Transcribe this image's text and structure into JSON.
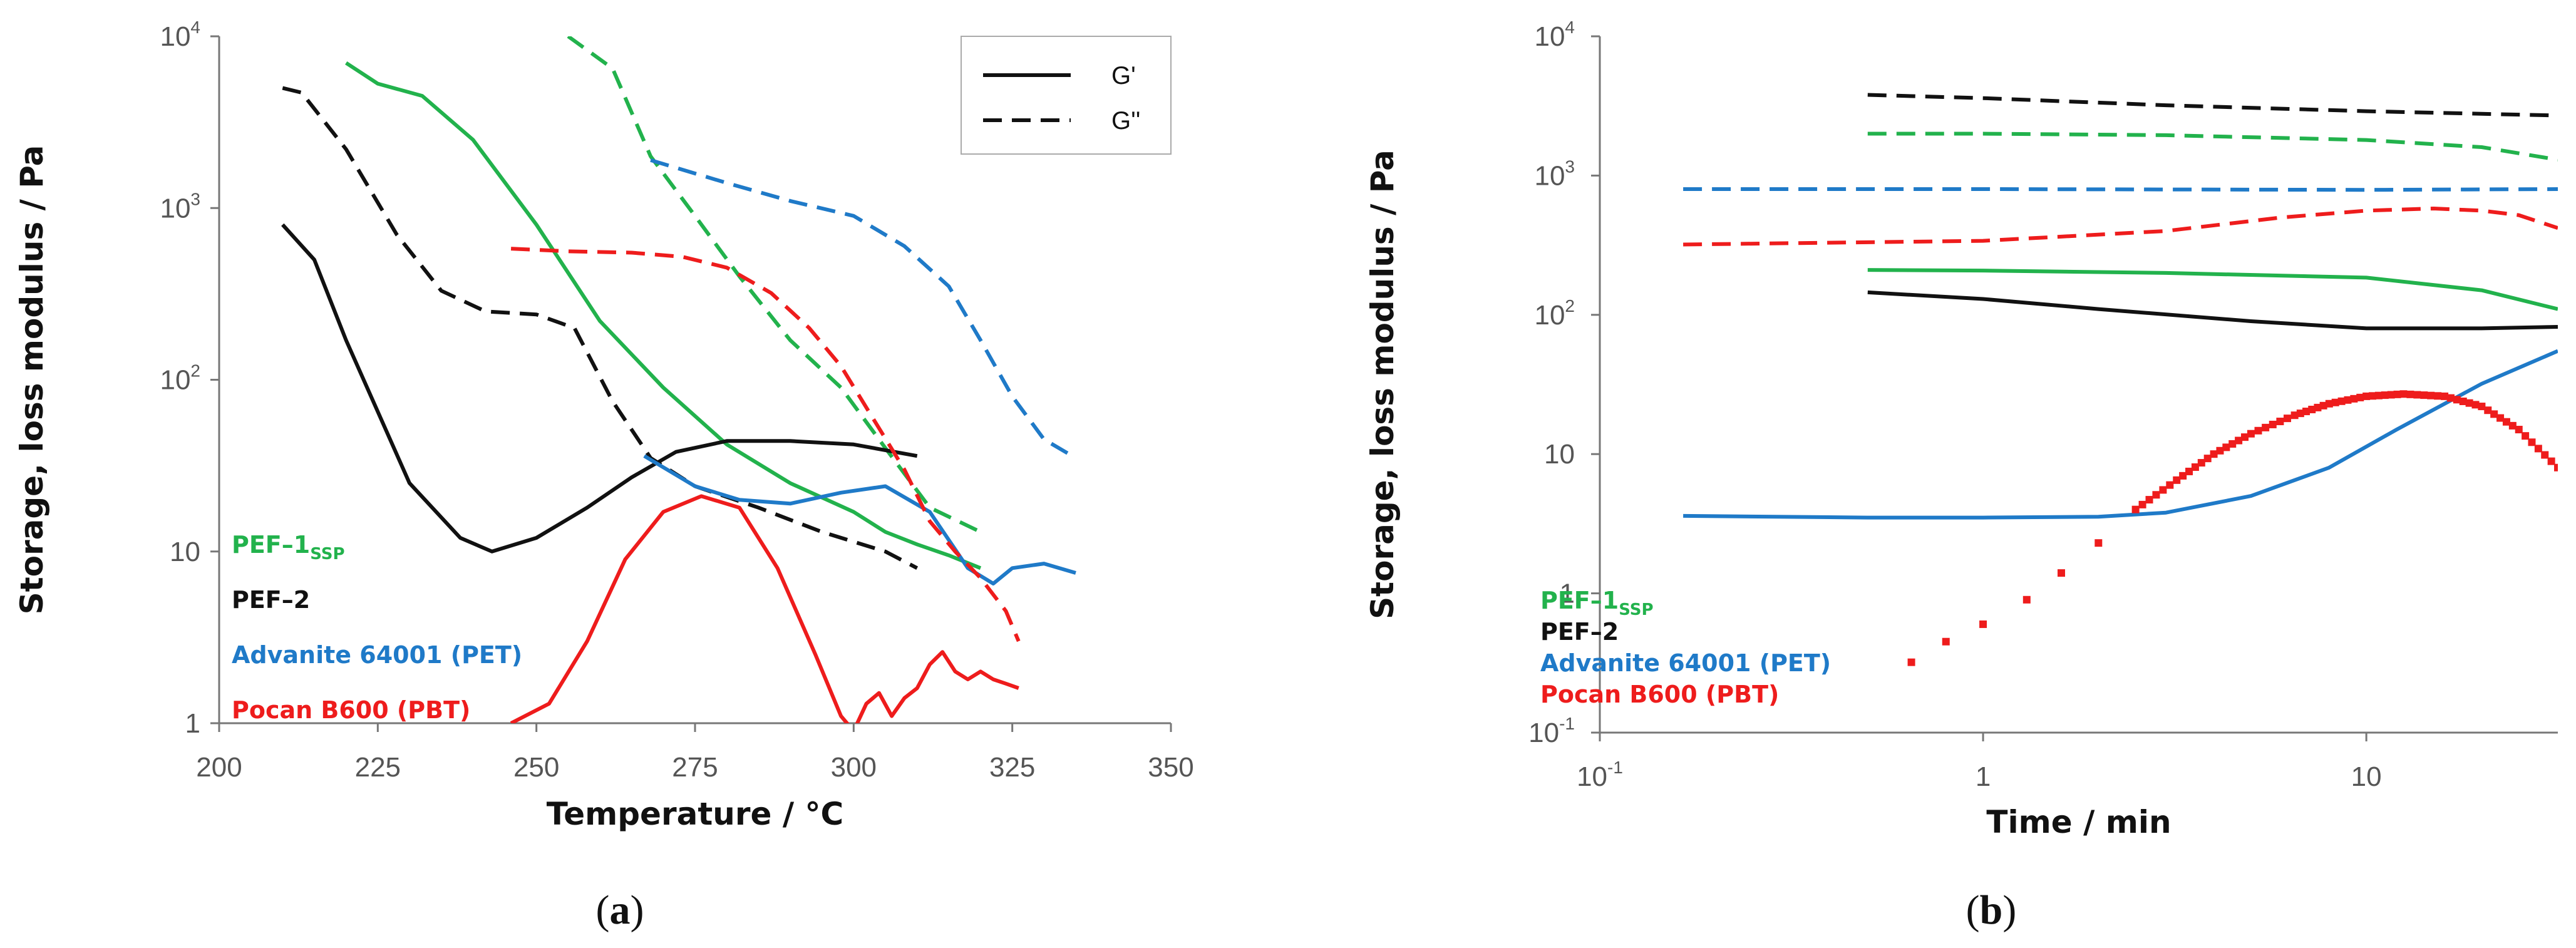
{
  "chart_data": [
    {
      "type": "line",
      "panel_label": "(a)",
      "xlabel": "Temperature / °C",
      "ylabel": "Storage, loss modulus / Pa",
      "xlim": [
        200,
        350
      ],
      "ylim": [
        1,
        10000
      ],
      "yscale": "log",
      "x_ticks": [
        "200",
        "225",
        "250",
        "275",
        "300",
        "325",
        "350"
      ],
      "y_ticks": [
        {
          "base": "10",
          "exp": "4"
        },
        {
          "base": "10",
          "exp": "3"
        },
        {
          "base": "10",
          "exp": "2"
        },
        {
          "base": "10",
          "exp": ""
        },
        {
          "base": "1",
          "exp": ""
        }
      ],
      "legend_position": "top-right",
      "style_legend": [
        {
          "label": "G'",
          "dash": "solid"
        },
        {
          "label": "G''",
          "dash": "dashed"
        }
      ],
      "series_labels": [
        {
          "main": "PEF–1",
          "sub": "SSP",
          "color": "#22b24c"
        },
        {
          "main": "PEF–2",
          "sub": "",
          "color": "#111111"
        },
        {
          "main": "Advanite 64001 (PET)",
          "sub": "",
          "color": "#1f7ac8"
        },
        {
          "main": "Pocan B600 (PBT)",
          "sub": "",
          "color": "#ee1c1c"
        }
      ],
      "series": [
        {
          "name": "PEF-1SSP G'",
          "color": "#22b24c",
          "dash": "solid",
          "x": [
            220,
            225,
            232,
            240,
            250,
            260,
            270,
            280,
            290,
            300,
            305,
            310,
            315,
            320
          ],
          "y": [
            7000,
            5300,
            4500,
            2500,
            800,
            220,
            90,
            42,
            25,
            17,
            13,
            11,
            9.5,
            8
          ]
        },
        {
          "name": "PEF-1SSP G''",
          "color": "#22b24c",
          "dash": "dashed",
          "x": [
            255,
            262,
            268,
            275,
            282,
            290,
            298,
            305,
            312,
            320
          ],
          "y": [
            10000,
            6500,
            2000,
            900,
            400,
            170,
            90,
            40,
            18,
            13
          ]
        },
        {
          "name": "PEF-2 G'",
          "color": "#111111",
          "dash": "solid",
          "x": [
            210,
            215,
            220,
            230,
            238,
            243,
            250,
            258,
            265,
            272,
            280,
            290,
            300,
            310
          ],
          "y": [
            800,
            500,
            170,
            25,
            12,
            10,
            12,
            18,
            27,
            38,
            44,
            44,
            42,
            36
          ]
        },
        {
          "name": "PEF-2 G''",
          "color": "#111111",
          "dash": "dashed",
          "x": [
            210,
            213,
            220,
            228,
            235,
            242,
            250,
            256,
            262,
            268,
            275,
            285,
            295,
            305,
            310
          ],
          "y": [
            5000,
            4700,
            2200,
            700,
            330,
            250,
            240,
            200,
            75,
            35,
            24,
            18,
            13,
            10,
            8
          ]
        },
        {
          "name": "Advanite 64001 (PET) G'",
          "color": "#1f7ac8",
          "dash": "solid",
          "x": [
            267,
            275,
            282,
            290,
            298,
            305,
            312,
            318,
            322,
            325,
            330,
            335
          ],
          "y": [
            36,
            24,
            20,
            19,
            22,
            24,
            17,
            8,
            6.5,
            8,
            8.5,
            7.5
          ]
        },
        {
          "name": "Advanite 64001 (PET) G''",
          "color": "#1f7ac8",
          "dash": "dashed",
          "x": [
            268,
            280,
            290,
            300,
            308,
            315,
            320,
            325,
            330,
            335
          ],
          "y": [
            1900,
            1400,
            1100,
            900,
            600,
            350,
            170,
            80,
            45,
            35
          ]
        },
        {
          "name": "Pocan B600 (PBT) G'",
          "color": "#ee1c1c",
          "dash": "solid",
          "x": [
            246,
            252,
            258,
            264,
            270,
            276,
            282,
            288,
            294,
            298,
            300,
            302,
            304,
            306,
            308,
            310,
            312,
            314,
            316,
            318,
            320,
            322,
            324,
            326
          ],
          "y": [
            1,
            1.3,
            3,
            9,
            17,
            21,
            18,
            8,
            2.5,
            1.1,
            0.9,
            1.3,
            1.5,
            1.1,
            1.4,
            1.6,
            2.2,
            2.6,
            2.0,
            1.8,
            2.0,
            1.8,
            1.7,
            1.6
          ]
        },
        {
          "name": "Pocan B600 (PBT) G''",
          "color": "#ee1c1c",
          "dash": "dashed",
          "x": [
            246,
            255,
            265,
            273,
            280,
            287,
            293,
            298,
            303,
            308,
            312,
            316,
            320,
            324,
            326
          ],
          "y": [
            580,
            560,
            550,
            520,
            450,
            320,
            200,
            120,
            60,
            30,
            15,
            10,
            7,
            4.5,
            3
          ]
        }
      ]
    },
    {
      "type": "line",
      "panel_label": "(b)",
      "xlabel": "Time / min",
      "ylabel": "Storage, loss modulus / Pa",
      "xscale": "log",
      "yscale": "log",
      "xlim": [
        0.1,
        31.6
      ],
      "ylim": [
        0.1,
        10000
      ],
      "x_ticks": [
        {
          "base": "10",
          "exp": "-1"
        },
        {
          "base": "1",
          "exp": ""
        },
        {
          "base": "10",
          "exp": ""
        }
      ],
      "y_ticks": [
        {
          "base": "10",
          "exp": "4"
        },
        {
          "base": "10",
          "exp": "3"
        },
        {
          "base": "10",
          "exp": "2"
        },
        {
          "base": "10",
          "exp": ""
        },
        {
          "base": "1",
          "exp": ""
        },
        {
          "base": "10",
          "exp": "-1"
        }
      ],
      "series_labels": [
        {
          "main": "PEF–1",
          "sub": "SSP",
          "color": "#22b24c"
        },
        {
          "main": "PEF–2",
          "sub": "",
          "color": "#111111"
        },
        {
          "main": "Advanite 64001 (PET)",
          "sub": "",
          "color": "#1f7ac8"
        },
        {
          "main": "Pocan B600 (PBT)",
          "sub": "",
          "color": "#ee1c1c"
        }
      ],
      "series": [
        {
          "name": "PEF-2 G''",
          "color": "#111111",
          "dash": "dashed",
          "x": [
            0.5,
            1,
            3,
            10,
            31.6
          ],
          "y": [
            3800,
            3600,
            3200,
            2900,
            2700
          ]
        },
        {
          "name": "PEF-1SSP G''",
          "color": "#22b24c",
          "dash": "dashed",
          "x": [
            0.5,
            1,
            3,
            10,
            20,
            31.6
          ],
          "y": [
            2000,
            2000,
            1950,
            1800,
            1600,
            1300
          ]
        },
        {
          "name": "Advanite 64001 (PET) G''",
          "color": "#1f7ac8",
          "dash": "dashed",
          "x": [
            0.165,
            1,
            10,
            31.6
          ],
          "y": [
            800,
            800,
            790,
            800
          ]
        },
        {
          "name": "Pocan B600 (PBT) G''",
          "color": "#ee1c1c",
          "dash": "dashed",
          "x": [
            0.165,
            1,
            3,
            6,
            10,
            15,
            20,
            25,
            31.6
          ],
          "y": [
            320,
            340,
            400,
            500,
            560,
            580,
            560,
            520,
            420
          ]
        },
        {
          "name": "PEF-1SSP G'",
          "color": "#22b24c",
          "dash": "solid",
          "x": [
            0.5,
            1,
            3,
            10,
            20,
            31.6
          ],
          "y": [
            210,
            208,
            200,
            185,
            150,
            110
          ]
        },
        {
          "name": "PEF-2 G'",
          "color": "#111111",
          "dash": "solid",
          "x": [
            0.5,
            1,
            2,
            5,
            10,
            20,
            31.6
          ],
          "y": [
            145,
            130,
            110,
            90,
            80,
            80,
            82
          ]
        },
        {
          "name": "Advanite 64001 (PET) G'",
          "color": "#1f7ac8",
          "dash": "solid",
          "x": [
            0.165,
            0.5,
            1,
            2,
            3,
            5,
            8,
            12,
            20,
            31.6
          ],
          "y": [
            3.6,
            3.5,
            3.5,
            3.55,
            3.8,
            5,
            8,
            15,
            32,
            55
          ]
        },
        {
          "name": "Pocan B600 (PBT) G'",
          "color": "#ee1c1c",
          "dash": "dotted",
          "x": [
            0.65,
            0.8,
            1.0,
            1.3,
            1.6,
            2.0,
            2.5,
            3.2,
            4,
            5,
            6.5,
            8,
            10,
            12.5,
            16,
            20,
            25,
            31.6
          ],
          "y": [
            0.32,
            0.45,
            0.6,
            0.9,
            1.4,
            2.3,
            4,
            6.5,
            10,
            14,
            19,
            23,
            26,
            27,
            26,
            22,
            15,
            8
          ]
        }
      ]
    }
  ]
}
